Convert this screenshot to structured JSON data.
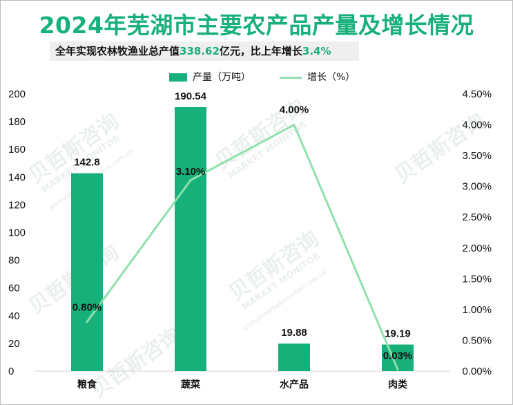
{
  "header": {
    "title": "2024年芜湖市主要农产品产量及增长情况",
    "subtitle_prefix": "全年实现农林牧渔业总产值",
    "subtitle_value": "338.62",
    "subtitle_mid": "亿元，比上年增长",
    "subtitle_growth": "3.4%"
  },
  "legend": {
    "bar_label": "产量（万吨）",
    "line_label": "增长（%）"
  },
  "watermark": {
    "brand": "贝哲斯咨询",
    "english": "MARKET MONITOR",
    "url": "globalmarketmonitor.com.cn"
  },
  "colors": {
    "bar": "#17b07a",
    "line": "#8fe0ad",
    "title": "#17b07a"
  },
  "chart_data": {
    "type": "bar",
    "title": "2024年芜湖市主要农产品产量及增长情况",
    "categories": [
      "粮食",
      "蔬菜",
      "水产品",
      "肉类"
    ],
    "series": [
      {
        "name": "产量（万吨）",
        "type": "bar",
        "axis": "left",
        "values": [
          142.8,
          190.54,
          19.88,
          19.19
        ],
        "labels": [
          "142.8",
          "190.54",
          "19.88",
          "19.19"
        ]
      },
      {
        "name": "增长（%）",
        "type": "line",
        "axis": "right",
        "values": [
          0.8,
          3.1,
          4.0,
          0.03
        ],
        "labels": [
          "0.80%",
          "3.10%",
          "4.00%",
          "0.03%"
        ]
      }
    ],
    "left_axis": {
      "min": 0,
      "max": 200,
      "step": 20,
      "ticks": [
        "0",
        "20",
        "40",
        "60",
        "80",
        "100",
        "120",
        "140",
        "160",
        "180",
        "200"
      ]
    },
    "right_axis": {
      "min": 0,
      "max": 4.5,
      "step": 0.5,
      "ticks": [
        "0.00%",
        "0.50%",
        "1.00%",
        "1.50%",
        "2.00%",
        "2.50%",
        "3.00%",
        "3.50%",
        "4.00%",
        "4.50%"
      ]
    },
    "grid": false,
    "legend_position": "top-center"
  }
}
